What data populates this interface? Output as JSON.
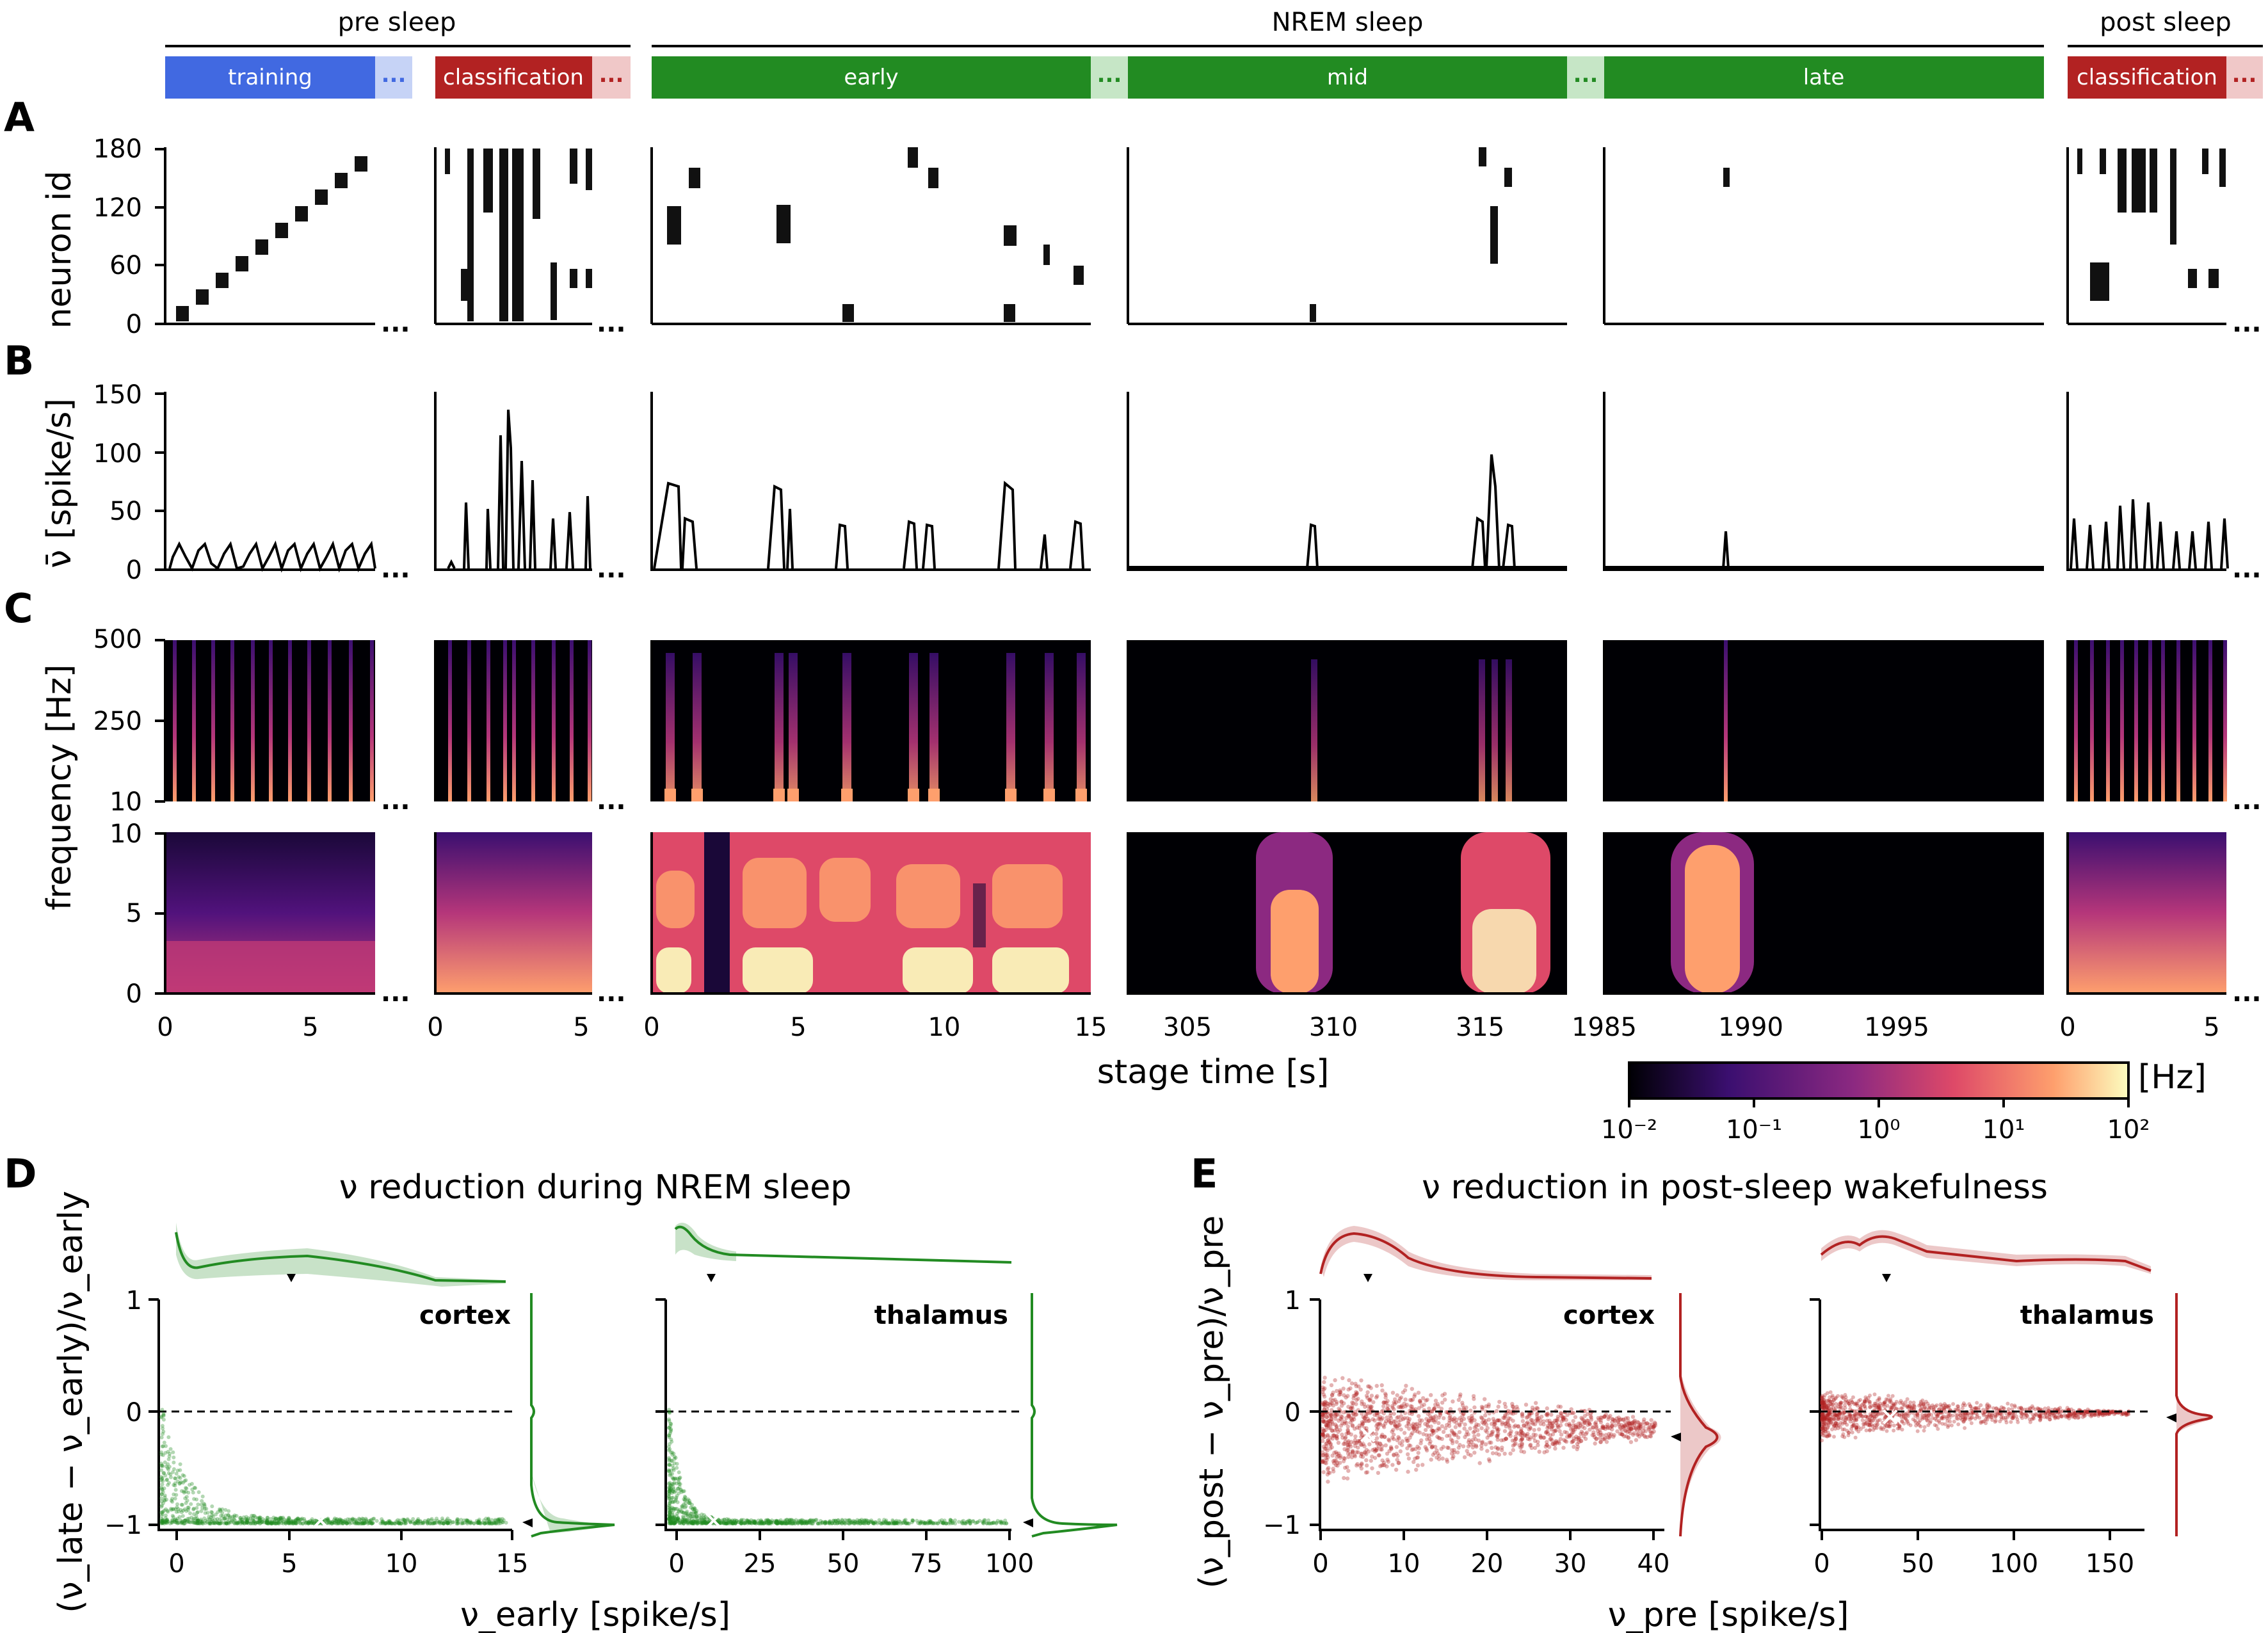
{
  "header": {
    "pre_sleep": "pre sleep",
    "nrem_sleep": "NREM sleep",
    "post_sleep": "post sleep",
    "bars": [
      {
        "label": "training",
        "color": "#4169e1",
        "light": "#c6d3f6"
      },
      {
        "label": "classification",
        "color": "#b22222",
        "light": "#f0c8c8"
      },
      {
        "label": "early",
        "color": "#228b22",
        "light": "#c6e6c6"
      },
      {
        "label": "mid",
        "color": "#228b22",
        "light": "#c6e6c6"
      },
      {
        "label": "late",
        "color": "#228b22",
        "light": "#c6e6c6"
      },
      {
        "label": "classification",
        "color": "#b22222",
        "light": "#f0c8c8"
      }
    ],
    "ellipsis": "..."
  },
  "panels": {
    "A": "A",
    "B": "B",
    "C": "C",
    "D": "D",
    "E": "E"
  },
  "rowA": {
    "ylabel": "neuron id",
    "yticks": [
      "180",
      "120",
      "60",
      "0"
    ]
  },
  "rowB": {
    "ylabel": "ν̄ [spike/s]",
    "yticks": [
      "150",
      "100",
      "50",
      "0"
    ]
  },
  "rowC": {
    "ylabel": "frequency [Hz]",
    "yticks_top": [
      "500",
      "250",
      "10"
    ],
    "yticks_bottom": [
      "10",
      "5",
      "0"
    ]
  },
  "xaxis": {
    "seg1": [
      "0",
      "5"
    ],
    "seg2": [
      "0",
      "5"
    ],
    "seg3": [
      "0",
      "5",
      "10",
      "15"
    ],
    "seg4": [
      "305",
      "310",
      "315"
    ],
    "seg5": [
      "1985",
      "1990",
      "1995"
    ],
    "seg6": [
      "0",
      "5"
    ],
    "label": "stage time [s]"
  },
  "colorbar": {
    "unit": "[Hz]",
    "ticks": [
      "10⁻²",
      "10⁻¹",
      "10⁰",
      "10¹",
      "10²"
    ],
    "stops": [
      "#000004",
      "#3b0f70",
      "#8c2981",
      "#de4968",
      "#fe9f6d",
      "#fcfdbf"
    ]
  },
  "panelD": {
    "title": "ν reduction during NREM sleep",
    "ylabel": "(ν_late − ν_early)/ν_early",
    "xlabel": "ν_early [spike/s]",
    "left": {
      "region": "cortex",
      "xticks": [
        "0",
        "5",
        "10",
        "15"
      ]
    },
    "right": {
      "region": "thalamus",
      "xticks": [
        "0",
        "25",
        "50",
        "75",
        "100"
      ]
    },
    "yticks": [
      "1",
      "0",
      "−1"
    ],
    "color": "#228b22"
  },
  "panelE": {
    "title": "ν reduction in post-sleep wakefulness",
    "ylabel": "(ν_post − ν_pre)/ν_pre",
    "xlabel": "ν_pre [spike/s]",
    "left": {
      "region": "cortex",
      "xticks": [
        "0",
        "10",
        "20",
        "30",
        "40"
      ]
    },
    "right": {
      "region": "thalamus",
      "xticks": [
        "0",
        "50",
        "100",
        "150"
      ]
    },
    "yticks": [
      "1",
      "0",
      "−1"
    ],
    "color": "#b22222"
  }
}
